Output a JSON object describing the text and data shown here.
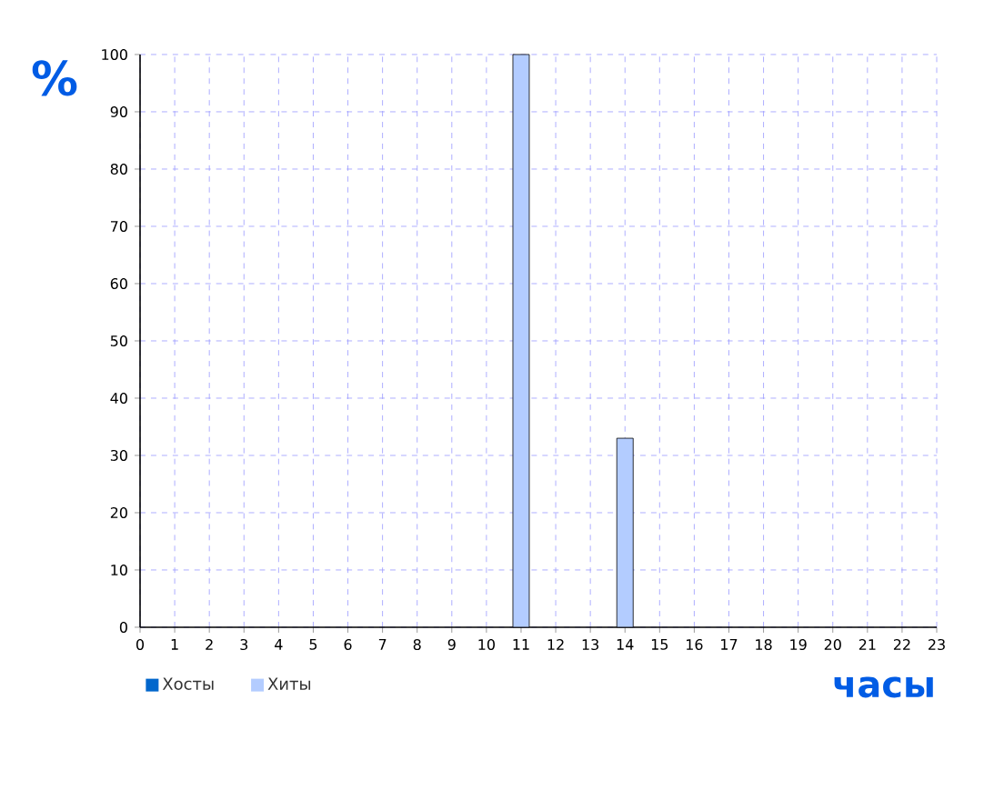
{
  "chart_data": {
    "type": "bar",
    "ylabel": "%",
    "xlabel": "часы",
    "categories": [
      "0",
      "1",
      "2",
      "3",
      "4",
      "5",
      "6",
      "7",
      "8",
      "9",
      "10",
      "11",
      "12",
      "13",
      "14",
      "15",
      "16",
      "17",
      "18",
      "19",
      "20",
      "21",
      "22",
      "23"
    ],
    "series": [
      {
        "name": "Хосты",
        "color": "#0066cc",
        "values": [
          null,
          null,
          null,
          null,
          null,
          null,
          null,
          null,
          null,
          null,
          null,
          null,
          null,
          null,
          null,
          null,
          null,
          null,
          null,
          null,
          null,
          null,
          null,
          null
        ]
      },
      {
        "name": "Хиты",
        "color": "#b3ccff",
        "values": [
          null,
          null,
          null,
          null,
          null,
          null,
          null,
          null,
          null,
          null,
          null,
          100,
          null,
          null,
          33,
          null,
          null,
          null,
          null,
          null,
          null,
          null,
          null,
          null
        ]
      }
    ],
    "ylim": [
      0,
      100
    ],
    "yticks": [
      0,
      10,
      20,
      30,
      40,
      50,
      60,
      70,
      80,
      90,
      100
    ],
    "grid": true,
    "legend": "bottom left"
  }
}
